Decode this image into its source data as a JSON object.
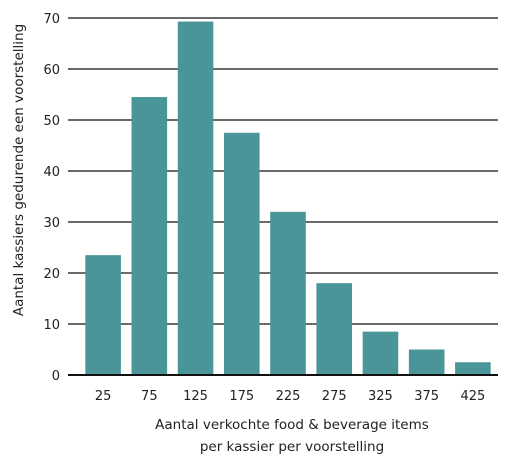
{
  "chart_data": {
    "type": "bar",
    "categories": [
      "25",
      "75",
      "125",
      "175",
      "225",
      "275",
      "325",
      "375",
      "425"
    ],
    "values": [
      23.5,
      54.5,
      69.3,
      47.5,
      32.0,
      18.0,
      8.5,
      5.0,
      2.5
    ],
    "xlabel_line1": "Aantal verkochte food & beverage items",
    "xlabel_line2": "per kassier per voorstelling",
    "ylabel": "Aantal kassiers gedurende een voorstelling",
    "ylim": [
      0,
      70
    ],
    "yticks": [
      "0",
      "10",
      "20",
      "30",
      "40",
      "50",
      "60",
      "70"
    ],
    "grid": true,
    "bar_color": "#4a9598"
  }
}
